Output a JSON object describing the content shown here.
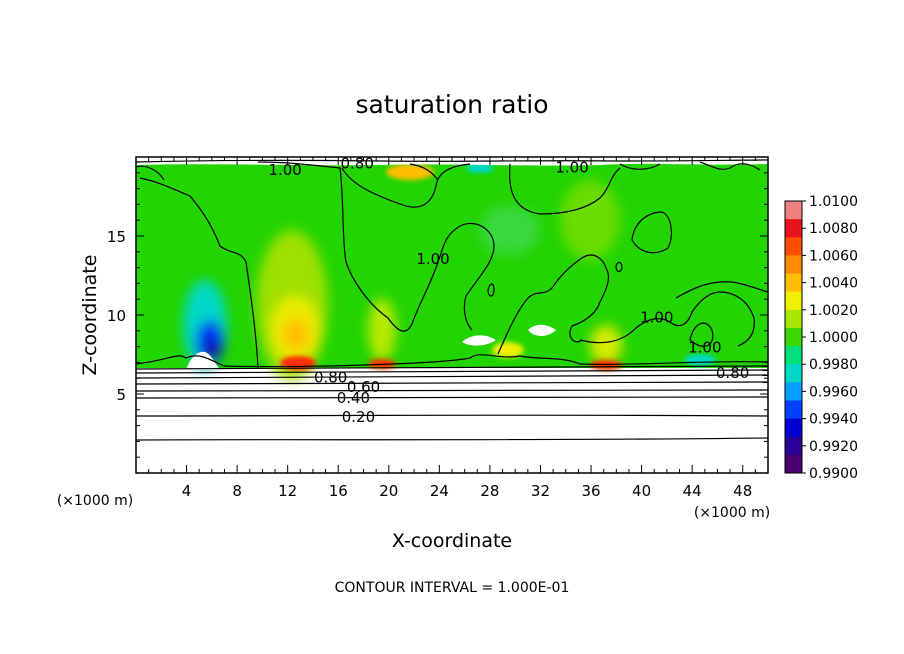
{
  "chart_data": {
    "type": "heatmap",
    "title": "saturation ratio",
    "xlabel": "X-coordinate",
    "ylabel": "Z-coordinate",
    "x_unit": "(×1000 m)",
    "y_unit": "(×1000 m)",
    "xlim": [
      0,
      50
    ],
    "ylim": [
      0,
      20
    ],
    "x_ticks": [
      "4",
      "8",
      "12",
      "16",
      "20",
      "24",
      "28",
      "32",
      "36",
      "40",
      "44",
      "48"
    ],
    "y_ticks": [
      "5",
      "10",
      "15"
    ],
    "footer": "CONTOUR INTERVAL = 1.000E-01",
    "colorbar": {
      "labels": [
        "1.0100",
        "1.0080",
        "1.0060",
        "1.0040",
        "1.0020",
        "1.0000",
        "0.9980",
        "0.9960",
        "0.9940",
        "0.9920",
        "0.9900"
      ],
      "colors": [
        "#f07f7f",
        "#e8141c",
        "#ff4e00",
        "#ff8a00",
        "#ffbe00",
        "#f0f000",
        "#a8e800",
        "#3cd800",
        "#00e07a",
        "#00d8c8",
        "#00a0ff",
        "#0040ff",
        "#0000d0",
        "#2a0098",
        "#4a0070"
      ],
      "min": 0.99,
      "max": 1.01
    },
    "contour_labels": [
      {
        "text": "0.80",
        "x": 17.5,
        "z": 19.65
      },
      {
        "text": "1.00",
        "x": 11.8,
        "z": 19.25
      },
      {
        "text": "1.00",
        "x": 34.5,
        "z": 19.4
      },
      {
        "text": "1.00",
        "x": 23.5,
        "z": 13.6
      },
      {
        "text": "1.00",
        "x": 41.2,
        "z": 9.9
      },
      {
        "text": "1.00",
        "x": 45.0,
        "z": 8.0
      },
      {
        "text": "0.80",
        "x": 15.4,
        "z": 6.1
      },
      {
        "text": "0.60",
        "x": 18.0,
        "z": 5.5
      },
      {
        "text": "0.40",
        "x": 17.2,
        "z": 4.8
      },
      {
        "text": "0.20",
        "x": 17.6,
        "z": 3.6
      },
      {
        "text": "0.80",
        "x": 47.2,
        "z": 6.4
      }
    ]
  }
}
